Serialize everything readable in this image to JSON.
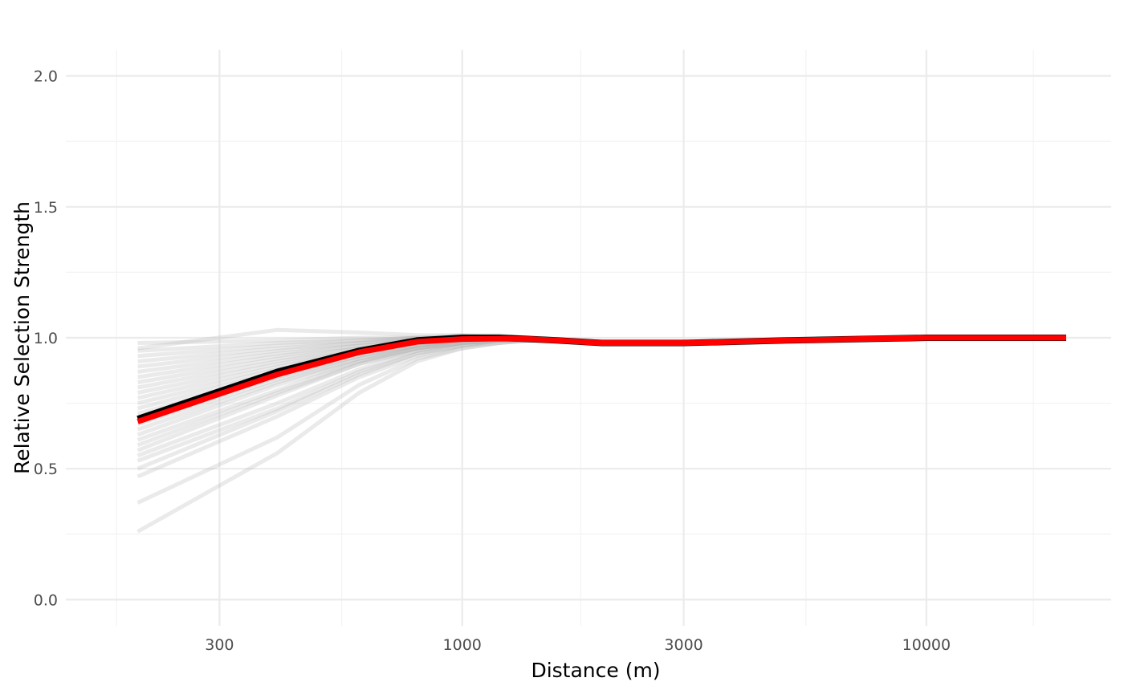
{
  "chart_data": {
    "type": "line",
    "title": "",
    "xlabel": "Distance (m)",
    "ylabel": "Relative Selection Strength",
    "x_scale": "log10",
    "xlim": [
      140,
      25000
    ],
    "ylim": [
      -0.1,
      2.1
    ],
    "x_ticks": [
      300,
      1000,
      3000,
      10000
    ],
    "x_tick_labels": [
      "300",
      "1000",
      "3000",
      "10000"
    ],
    "x_minor_ticks": [
      180,
      550,
      1800,
      5500,
      17000
    ],
    "y_ticks": [
      0,
      0.5,
      1,
      1.5,
      2
    ],
    "y_tick_labels": [
      "0.0",
      "0.5",
      "1.0",
      "1.5",
      "2.0"
    ],
    "y_minor_ticks": [
      0.25,
      0.75,
      1.25,
      1.75
    ],
    "grid": true,
    "legend": "none",
    "x": [
      200,
      400,
      600,
      800,
      1000,
      1200,
      1400,
      1600,
      2000,
      3000,
      5000,
      10000,
      20000
    ],
    "series": [
      {
        "role": "bootstrap",
        "color": "#b3b3b3",
        "values_list": [
          [
            0.98,
            0.99,
            1.0,
            1.0,
            1.0,
            1.0,
            0.99,
            0.99,
            0.98,
            0.98,
            0.99,
            1.0,
            1.0
          ],
          [
            0.96,
            1.03,
            1.02,
            1.01,
            1.01,
            1.0,
            1.0,
            0.99,
            0.98,
            0.98,
            0.99,
            1.0,
            1.0
          ],
          [
            0.95,
            0.98,
            0.99,
            1.0,
            1.0,
            1.0,
            0.99,
            0.99,
            0.98,
            0.98,
            0.99,
            1.0,
            1.0
          ],
          [
            0.93,
            0.97,
            0.99,
            1.0,
            1.01,
            1.01,
            1.0,
            0.99,
            0.98,
            0.98,
            0.99,
            1.0,
            1.0
          ],
          [
            0.91,
            0.96,
            0.98,
            1.0,
            1.0,
            1.0,
            0.99,
            0.99,
            0.98,
            0.98,
            0.99,
            1.0,
            1.0
          ],
          [
            0.89,
            0.95,
            0.98,
            0.99,
            1.0,
            1.0,
            0.99,
            0.99,
            0.98,
            0.98,
            0.99,
            1.0,
            1.0
          ],
          [
            0.87,
            0.94,
            0.97,
            0.99,
            1.0,
            1.0,
            0.99,
            0.99,
            0.98,
            0.98,
            0.99,
            1.0,
            1.0
          ],
          [
            0.85,
            0.93,
            0.97,
            0.99,
            1.0,
            1.0,
            0.99,
            0.99,
            0.98,
            0.98,
            0.99,
            1.0,
            1.0
          ],
          [
            0.83,
            0.92,
            0.96,
            0.99,
            1.0,
            1.0,
            0.99,
            0.99,
            0.98,
            0.98,
            0.99,
            1.0,
            1.0
          ],
          [
            0.81,
            0.91,
            0.96,
            0.98,
            0.99,
            1.0,
            0.99,
            0.99,
            0.98,
            0.98,
            0.99,
            1.0,
            1.0
          ],
          [
            0.79,
            0.9,
            0.95,
            0.98,
            0.99,
            1.0,
            0.99,
            0.99,
            0.98,
            0.98,
            0.99,
            1.0,
            1.0
          ],
          [
            0.77,
            0.89,
            0.95,
            0.98,
            0.99,
            1.0,
            0.99,
            0.99,
            0.98,
            0.98,
            0.99,
            1.0,
            1.0
          ],
          [
            0.75,
            0.88,
            0.94,
            0.98,
            0.99,
            1.0,
            0.99,
            0.99,
            0.98,
            0.98,
            0.99,
            1.0,
            1.0
          ],
          [
            0.73,
            0.87,
            0.94,
            0.97,
            0.99,
            1.0,
            0.99,
            0.99,
            0.98,
            0.98,
            0.99,
            1.0,
            1.0
          ],
          [
            0.71,
            0.86,
            0.93,
            0.97,
            0.99,
            0.99,
            0.99,
            0.99,
            0.98,
            0.98,
            0.99,
            1.0,
            1.0
          ],
          [
            0.69,
            0.85,
            0.93,
            0.97,
            0.99,
            0.99,
            0.99,
            0.99,
            0.98,
            0.98,
            0.99,
            1.0,
            1.0
          ],
          [
            0.67,
            0.84,
            0.92,
            0.97,
            0.99,
            0.99,
            0.99,
            0.99,
            0.98,
            0.98,
            0.99,
            1.0,
            1.0
          ],
          [
            0.65,
            0.83,
            0.92,
            0.96,
            0.98,
            0.99,
            0.99,
            0.99,
            0.98,
            0.98,
            0.99,
            1.0,
            1.0
          ],
          [
            0.63,
            0.82,
            0.91,
            0.96,
            0.98,
            0.99,
            0.99,
            0.99,
            0.98,
            0.98,
            0.99,
            1.0,
            1.0
          ],
          [
            0.61,
            0.8,
            0.91,
            0.96,
            0.98,
            0.99,
            0.99,
            0.99,
            0.98,
            0.98,
            0.99,
            1.0,
            1.0
          ],
          [
            0.59,
            0.79,
            0.9,
            0.96,
            0.98,
            0.99,
            0.99,
            0.99,
            0.98,
            0.98,
            0.99,
            1.0,
            1.0
          ],
          [
            0.57,
            0.78,
            0.9,
            0.95,
            0.98,
            0.99,
            0.99,
            0.99,
            0.98,
            0.98,
            0.99,
            1.0,
            1.0
          ],
          [
            0.55,
            0.75,
            0.88,
            0.95,
            0.98,
            0.99,
            0.99,
            0.99,
            0.98,
            0.98,
            0.99,
            1.0,
            1.0
          ],
          [
            0.53,
            0.73,
            0.87,
            0.94,
            0.97,
            0.99,
            0.99,
            0.99,
            0.98,
            0.98,
            0.99,
            1.0,
            1.0
          ],
          [
            0.5,
            0.72,
            0.86,
            0.94,
            0.97,
            0.99,
            0.99,
            0.99,
            0.98,
            0.98,
            0.99,
            1.0,
            1.0
          ],
          [
            0.47,
            0.7,
            0.85,
            0.93,
            0.97,
            0.98,
            0.99,
            0.99,
            0.98,
            0.98,
            0.99,
            1.0,
            1.0
          ],
          [
            0.37,
            0.62,
            0.82,
            0.92,
            0.96,
            0.98,
            0.99,
            0.99,
            0.98,
            0.98,
            0.99,
            1.0,
            1.0
          ],
          [
            0.26,
            0.56,
            0.79,
            0.91,
            0.96,
            0.98,
            0.99,
            0.99,
            0.98,
            0.98,
            0.99,
            1.0,
            1.0
          ]
        ]
      },
      {
        "role": "estimate",
        "color": "#000000",
        "values": [
          0.69,
          0.87,
          0.95,
          0.99,
          1.0,
          1.0,
          0.995,
          0.99,
          0.98,
          0.98,
          0.99,
          1.0,
          1.0
        ]
      },
      {
        "role": "mean",
        "color": "#ff0000",
        "values": [
          0.68,
          0.86,
          0.945,
          0.985,
          0.995,
          0.997,
          0.995,
          0.99,
          0.98,
          0.98,
          0.99,
          1.0,
          1.0
        ]
      }
    ],
    "colors": {
      "background": "#ffffff",
      "major_grid": "#ebebeb",
      "minor_grid": "#f3f3f3",
      "bootstrap": "#b3b3b3",
      "estimate": "#000000",
      "mean": "#ff0000"
    }
  }
}
